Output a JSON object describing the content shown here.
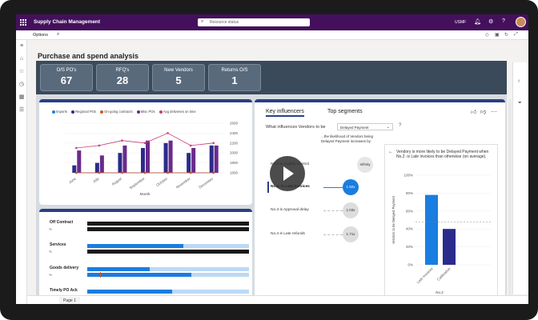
{
  "topbar": {
    "app_title": "Supply Chain Management",
    "search_placeholder": "Resource status",
    "company": "USMF"
  },
  "options": {
    "label": "Options"
  },
  "page": {
    "title": "Purchase and spend analysis"
  },
  "kpis": [
    {
      "label": "O/S PO's",
      "value": "67"
    },
    {
      "label": "RFQ's",
      "value": "28"
    },
    {
      "label": "New Vendors",
      "value": "5"
    },
    {
      "label": "Returns O/S",
      "value": "1"
    }
  ],
  "chart_data": [
    {
      "type": "bar",
      "title": "",
      "legend": [
        "Imports",
        "Regional POs",
        "On-going contracts",
        "Misc POs",
        "Avg deliveries on time"
      ],
      "categories": [
        "June",
        "July",
        "August",
        "September",
        "October",
        "November",
        "December"
      ],
      "xlabel": "Month",
      "series": [
        {
          "name": "Imports",
          "values": [
            950,
            1100,
            1450,
            1150,
            1350,
            1050,
            1300
          ]
        },
        {
          "name": "Regional POs",
          "values": [
            1750,
            1800,
            2000,
            2100,
            2200,
            2000,
            2150
          ]
        },
        {
          "name": "On-going contracts",
          "values": [
            1200,
            1400,
            1600,
            1450,
            1500,
            1350,
            1500
          ]
        },
        {
          "name": "Misc POs",
          "values": [
            2050,
            1950,
            2150,
            2250,
            2250,
            2100,
            2150
          ]
        },
        {
          "name": "Avg deliveries on time",
          "values": [
            2100,
            2150,
            2250,
            2200,
            2400,
            2150,
            2200
          ]
        }
      ],
      "ylim": [
        1600,
        2600
      ],
      "y2_ticks": [
        "2600",
        "2400",
        "2200",
        "2000",
        "1800",
        "1600"
      ],
      "colors": [
        "#1a7de0",
        "#2b2b8c",
        "#d9541e",
        "#6b2a8c",
        "#c83e7a"
      ]
    },
    {
      "type": "bar",
      "categories": [
        "Off Contract",
        "Services",
        "Goods delivery",
        "Timely PO Ack"
      ],
      "series": [
        {
          "name": "",
          "values": [
            100,
            60,
            38,
            52
          ]
        },
        {
          "name": "",
          "values": [
            0,
            0,
            65,
            72
          ]
        }
      ],
      "note": "horizontal"
    },
    {
      "type": "bar",
      "categories": [
        "Late invoices",
        "Calibration"
      ],
      "values": [
        0.78,
        0.4
      ],
      "ylabel": "Vendors to be Delayed Payment",
      "xlabel": "No.2",
      "y_ticks": [
        "100%",
        "80%",
        "60%",
        "40%",
        "20%",
        "0%"
      ],
      "ylim": [
        0,
        1
      ],
      "reference_line": 0.48
    }
  ],
  "hbars": [
    {
      "name": "Off Contract",
      "pct": "%"
    },
    {
      "name": "Services",
      "pct": "%"
    },
    {
      "name": "Goods delivery",
      "pct": "%"
    },
    {
      "name": "Timely PO Ack",
      "pct": "%"
    }
  ],
  "key_influencers": {
    "tab_active": "Key influencers",
    "tab_other": "Top segments",
    "question": "What influences Vendors to be",
    "dropdown_value": "Delayed Payment",
    "help": "?",
    "column_header": "...the likelihood of Vendors being Delayed Payment increases by",
    "influencers": [
      {
        "label": "No.1 is Quality Control",
        "value": "Infinity",
        "selected": false
      },
      {
        "label": "No.2. is Late invoices",
        "value": "1.92x",
        "selected": true
      },
      {
        "label": "No.3 is Approval delay",
        "value": "1.03x",
        "selected": false
      },
      {
        "label": "No.4 is Late refunds",
        "value": "1.71x",
        "selected": false
      }
    ],
    "detail_text": "Vendory is more likely to be Delayed Payment when No.2. is Late invoices than otherwise (on average)."
  },
  "footer": {
    "page_tab": "Page 1"
  }
}
